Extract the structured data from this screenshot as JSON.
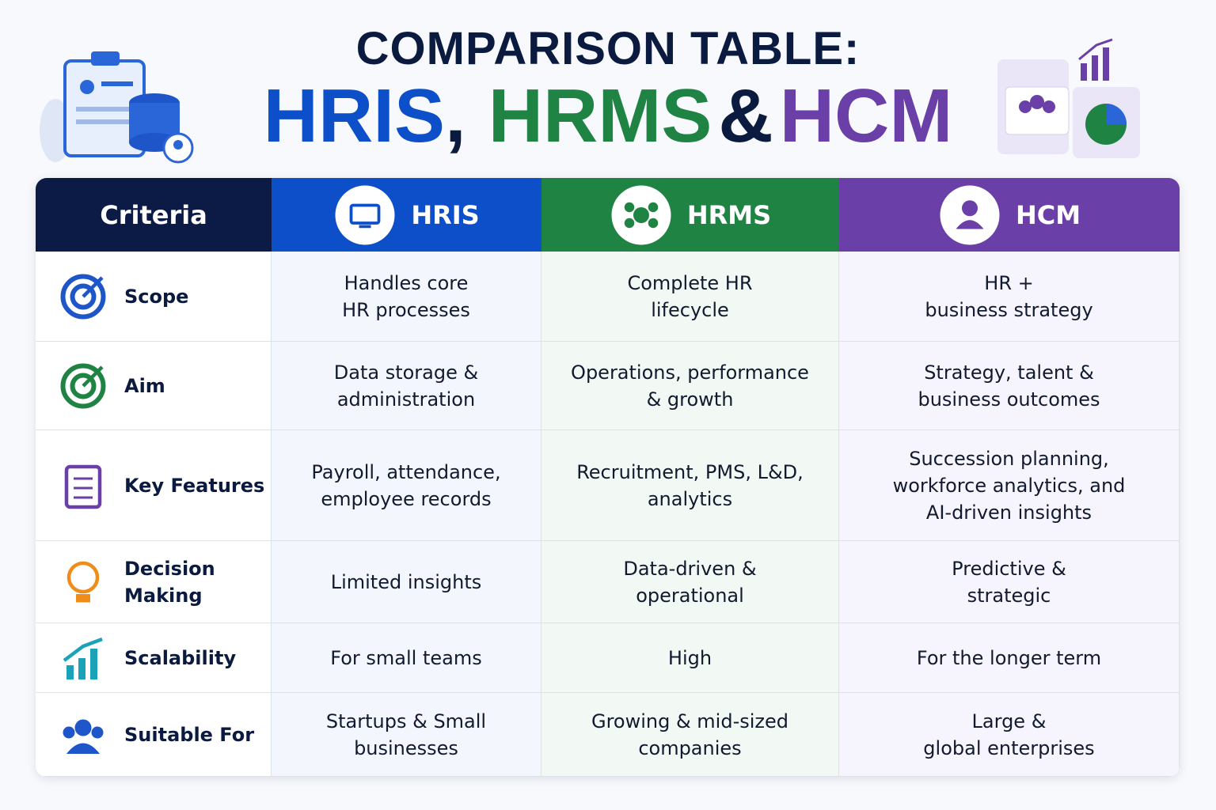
{
  "header": {
    "title_line1": "COMPARISON TABLE:",
    "title_line2": [
      "HRIS",
      ",",
      "HRMS",
      "&",
      "HCM"
    ]
  },
  "table": {
    "columns": [
      "Criteria",
      "HRIS",
      "HRMS",
      "HCM"
    ],
    "rows": [
      [
        "Scope",
        "Handles core\nHR processes",
        "Complete HR\nlifecycle",
        "HR +\nbusiness strategy"
      ],
      [
        "Aim",
        "Data storage &\nadministration",
        "Operations, performance\n& growth",
        "Strategy, talent &\nbusiness outcomes"
      ],
      [
        "Key Features",
        "Payroll, attendance,\nemployee records",
        "Recruitment, PMS, L&D,\nanalytics",
        "Succession planning,\nworkforce analytics, and\nAI-driven insights"
      ],
      [
        "Decision Making",
        "Limited insights",
        "Data-driven &\noperational",
        "Predictive &\nstrategic"
      ],
      [
        "Scalability",
        "For small teams",
        "High",
        "For the longer term"
      ],
      [
        "Suitable For",
        "Startups & Small\nbusinesses",
        "Growing & mid-sized\ncompanies",
        "Large &\nglobal enterprises"
      ]
    ]
  }
}
